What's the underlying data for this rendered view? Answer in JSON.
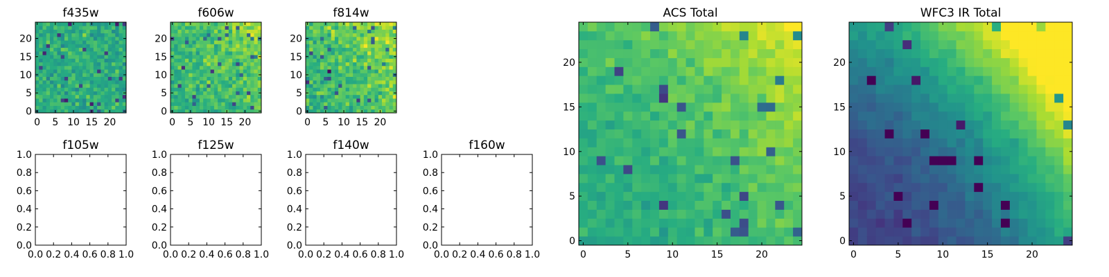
{
  "chart_data": [
    {
      "type": "heatmap",
      "title": "f435w",
      "colormap": "viridis",
      "grid_size": 25,
      "xlim": [
        -0.5,
        24.5
      ],
      "ylim": [
        -0.5,
        24.5
      ],
      "xticks": [
        0,
        5,
        10,
        15,
        20
      ],
      "yticks": [
        0,
        5,
        10,
        15,
        20
      ],
      "seed": 11,
      "mean": 0.62,
      "noise": 0.14,
      "gradient": 0.0
    },
    {
      "type": "heatmap",
      "title": "f606w",
      "colormap": "viridis",
      "grid_size": 25,
      "xlim": [
        -0.5,
        24.5
      ],
      "ylim": [
        -0.5,
        24.5
      ],
      "xticks": [
        0,
        5,
        10,
        15,
        20
      ],
      "yticks": [
        0,
        5,
        10,
        15,
        20
      ],
      "seed": 23,
      "mean": 0.66,
      "noise": 0.14,
      "gradient": 0.12
    },
    {
      "type": "heatmap",
      "title": "f814w",
      "colormap": "viridis",
      "grid_size": 25,
      "xlim": [
        -0.5,
        24.5
      ],
      "ylim": [
        -0.5,
        24.5
      ],
      "xticks": [
        0,
        5,
        10,
        15,
        20
      ],
      "yticks": [
        0,
        5,
        10,
        15,
        20
      ],
      "seed": 37,
      "mean": 0.66,
      "noise": 0.15,
      "gradient": 0.16
    },
    {
      "type": "empty",
      "title": "f105w",
      "xlim": [
        0,
        1
      ],
      "ylim": [
        0,
        1
      ],
      "xticks": [
        "0.0",
        "0.2",
        "0.4",
        "0.6",
        "0.8",
        "1.0"
      ],
      "yticks": [
        "0.0",
        "0.2",
        "0.4",
        "0.6",
        "0.8",
        "1.0"
      ]
    },
    {
      "type": "empty",
      "title": "f125w",
      "xlim": [
        0,
        1
      ],
      "ylim": [
        0,
        1
      ],
      "xticks": [
        "0.0",
        "0.2",
        "0.4",
        "0.6",
        "0.8",
        "1.0"
      ],
      "yticks": [
        "0.0",
        "0.2",
        "0.4",
        "0.6",
        "0.8",
        "1.0"
      ]
    },
    {
      "type": "empty",
      "title": "f140w",
      "xlim": [
        0,
        1
      ],
      "ylim": [
        0,
        1
      ],
      "xticks": [
        "0.0",
        "0.2",
        "0.4",
        "0.6",
        "0.8",
        "1.0"
      ],
      "yticks": [
        "0.0",
        "0.2",
        "0.4",
        "0.6",
        "0.8",
        "1.0"
      ]
    },
    {
      "type": "empty",
      "title": "f160w",
      "xlim": [
        0,
        1
      ],
      "ylim": [
        0,
        1
      ],
      "xticks": [
        "0.0",
        "0.2",
        "0.4",
        "0.6",
        "0.8",
        "1.0"
      ],
      "yticks": [
        "0.0",
        "0.2",
        "0.4",
        "0.6",
        "0.8",
        "1.0"
      ]
    },
    {
      "type": "heatmap",
      "title": "ACS Total",
      "colormap": "viridis",
      "grid_size": 25,
      "xlim": [
        -0.5,
        24.5
      ],
      "ylim": [
        -0.5,
        24.5
      ],
      "xticks": [
        0,
        5,
        10,
        15,
        20
      ],
      "yticks": [
        0,
        5,
        10,
        15,
        20
      ],
      "seed": 53,
      "mean": 0.62,
      "noise": 0.08,
      "gradient": 0.22
    },
    {
      "type": "heatmap",
      "title": "WFC3 IR Total",
      "colormap": "viridis",
      "grid_size": 25,
      "xlim": [
        -0.5,
        24.5
      ],
      "ylim": [
        -0.5,
        24.5
      ],
      "xticks": [
        0,
        5,
        10,
        15,
        20
      ],
      "yticks": [
        0,
        5,
        10,
        15,
        20
      ],
      "seed": 71,
      "mean": 0.2,
      "noise": 0.05,
      "gradient": 0.75
    }
  ]
}
